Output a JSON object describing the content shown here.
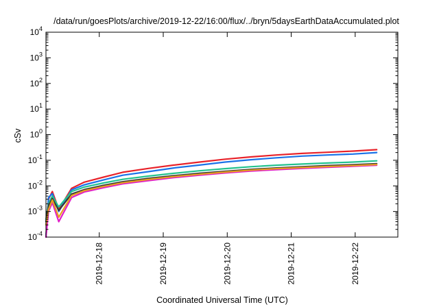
{
  "chart_data": {
    "type": "line",
    "title": "/data/run/goesPlots/archive/2019-12-22/16:00/flux/../bryn/5daysEarthDataAccumulated.plot",
    "xlabel": "Coordinated Universal Time (UTC)",
    "ylabel": "cSv",
    "yscale": "log",
    "ylim": [
      0.0001,
      10000
    ],
    "xlim": [
      "2019-12-17T04:00",
      "2019-12-22T16:00"
    ],
    "yticks": [
      {
        "value": 0.0001,
        "base": "10",
        "exp": "-4"
      },
      {
        "value": 0.001,
        "base": "10",
        "exp": "-3"
      },
      {
        "value": 0.01,
        "base": "10",
        "exp": "-2"
      },
      {
        "value": 0.1,
        "base": "10",
        "exp": "-1"
      },
      {
        "value": 1,
        "base": "10",
        "exp": "0"
      },
      {
        "value": 10,
        "base": "10",
        "exp": "1"
      },
      {
        "value": 100,
        "base": "10",
        "exp": "2"
      },
      {
        "value": 1000,
        "base": "10",
        "exp": "3"
      },
      {
        "value": 10000,
        "base": "10",
        "exp": "4"
      }
    ],
    "xticks": [
      "2019-12-18",
      "2019-12-19",
      "2019-12-20",
      "2019-12-21",
      "2019-12-22"
    ],
    "grid": false,
    "legend": "none",
    "series": [
      {
        "color": "#e8222a",
        "x": [
          0.0,
          0.04,
          0.1,
          0.2,
          0.4,
          0.6,
          0.9,
          1.2,
          1.6,
          2.0,
          2.4,
          2.8,
          3.2,
          3.6,
          4.0,
          4.4,
          4.8,
          5.17
        ],
        "y": [
          0.0001,
          0.003,
          0.006,
          0.0012,
          0.008,
          0.014,
          0.022,
          0.034,
          0.048,
          0.065,
          0.085,
          0.11,
          0.135,
          0.16,
          0.185,
          0.205,
          0.228,
          0.26
        ]
      },
      {
        "color": "#1a72e8",
        "x": [
          0.0,
          0.04,
          0.1,
          0.2,
          0.4,
          0.6,
          0.9,
          1.2,
          1.6,
          2.0,
          2.4,
          2.8,
          3.2,
          3.6,
          4.0,
          4.4,
          4.8,
          5.17
        ],
        "y": [
          0.0001,
          0.0035,
          0.005,
          0.001,
          0.007,
          0.011,
          0.017,
          0.026,
          0.036,
          0.05,
          0.065,
          0.085,
          0.105,
          0.125,
          0.145,
          0.16,
          0.175,
          0.2
        ]
      },
      {
        "color": "#23c28e",
        "x": [
          0.0,
          0.04,
          0.1,
          0.2,
          0.4,
          0.6,
          0.9,
          1.2,
          1.6,
          2.0,
          2.4,
          2.8,
          3.2,
          3.6,
          4.0,
          4.4,
          4.8,
          5.17
        ],
        "y": [
          0.0005,
          0.002,
          0.004,
          0.0015,
          0.006,
          0.009,
          0.013,
          0.018,
          0.024,
          0.031,
          0.039,
          0.047,
          0.056,
          0.064,
          0.071,
          0.078,
          0.085,
          0.095
        ]
      },
      {
        "color": "#3a3a3a",
        "x": [
          0.0,
          0.04,
          0.1,
          0.2,
          0.4,
          0.6,
          0.9,
          1.2,
          1.6,
          2.0,
          2.4,
          2.8,
          3.2,
          3.6,
          4.0,
          4.4,
          4.8,
          5.17
        ],
        "y": [
          0.0004,
          0.0017,
          0.0032,
          0.0011,
          0.0048,
          0.0072,
          0.0105,
          0.0145,
          0.0195,
          0.025,
          0.031,
          0.037,
          0.044,
          0.05,
          0.056,
          0.062,
          0.067,
          0.074
        ]
      },
      {
        "color": "#e020c8",
        "x": [
          0.0,
          0.04,
          0.1,
          0.2,
          0.4,
          0.6,
          0.9,
          1.2,
          1.6,
          2.0,
          2.4,
          2.8,
          3.2,
          3.6,
          4.0,
          4.4,
          4.8,
          5.17
        ],
        "y": [
          0.0001,
          0.001,
          0.0022,
          0.0004,
          0.0035,
          0.0058,
          0.0085,
          0.012,
          0.016,
          0.021,
          0.026,
          0.032,
          0.038,
          0.043,
          0.048,
          0.053,
          0.058,
          0.064
        ]
      },
      {
        "color": "#e8a020",
        "x": [
          0.0,
          0.04,
          0.1,
          0.2,
          0.4,
          0.6,
          0.9,
          1.2,
          1.6,
          2.0,
          2.4,
          2.8,
          3.2,
          3.6,
          4.0,
          4.4,
          4.8,
          5.17
        ],
        "y": [
          0.0003,
          0.0012,
          0.0028,
          0.0006,
          0.0042,
          0.0065,
          0.0095,
          0.0132,
          0.0178,
          0.023,
          0.0285,
          0.0345,
          0.041,
          0.047,
          0.052,
          0.057,
          0.062,
          0.068
        ]
      }
    ]
  }
}
